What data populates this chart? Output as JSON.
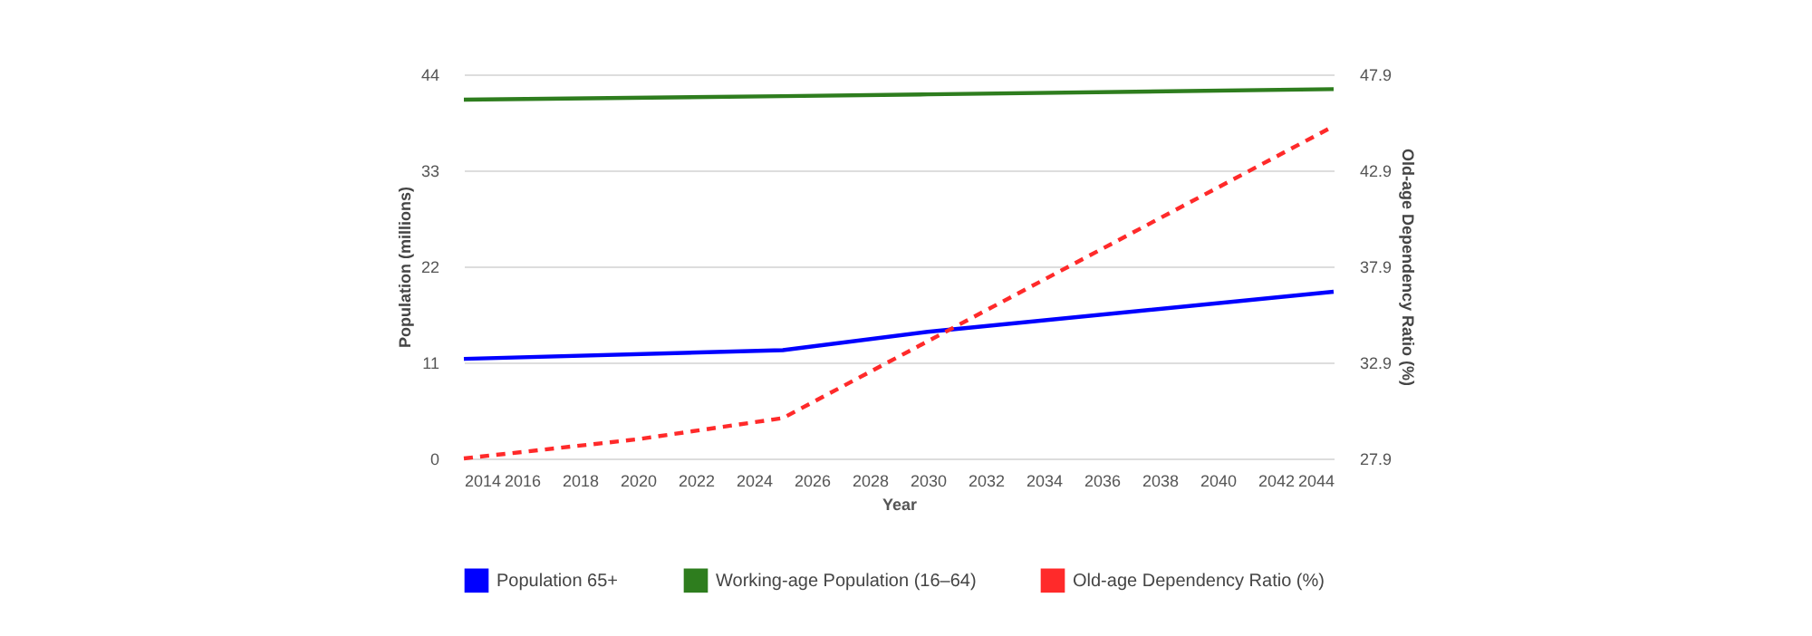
{
  "chart_data": {
    "type": "line",
    "xlabel": "Year",
    "ylabel": "Population (millions)",
    "y2label": "Old-age Dependency Ratio (%)",
    "series": [
      {
        "name": "Population 65+",
        "color": "#0000ff",
        "x": [
          2014,
          2025,
          2030,
          2044
        ],
        "values": [
          11.4,
          12.4,
          14.5,
          19.1
        ]
      },
      {
        "name": "Working-age Population (16–64)",
        "color": "#2e7d1e",
        "x": [
          2014,
          2025,
          2030,
          2044
        ],
        "values": [
          41.1,
          41.5,
          41.7,
          42.3
        ]
      },
      {
        "name": "Old-age Dependency Ratio (%)",
        "color": "#ff2a2a",
        "axis": "y2",
        "line_style": "dashed",
        "x": [
          2014,
          2020,
          2025,
          2030,
          2044
        ],
        "values": [
          27.9,
          28.9,
          30.0,
          34.0,
          45.2
        ]
      }
    ],
    "xlim": [
      2014,
      2044
    ],
    "xticks": [
      2014,
      2016,
      2018,
      2020,
      2022,
      2024,
      2026,
      2028,
      2030,
      2032,
      2034,
      2036,
      2038,
      2040,
      2042,
      2044
    ],
    "ylim": [
      0,
      44
    ],
    "yticks": [
      0,
      11,
      22,
      33,
      44
    ],
    "y2lim": [
      27.9,
      47.9
    ],
    "y2ticks": [
      27.9,
      32.9,
      37.9,
      42.9,
      47.9
    ],
    "grid": "y",
    "legend": "bottom",
    "marker": "none"
  }
}
